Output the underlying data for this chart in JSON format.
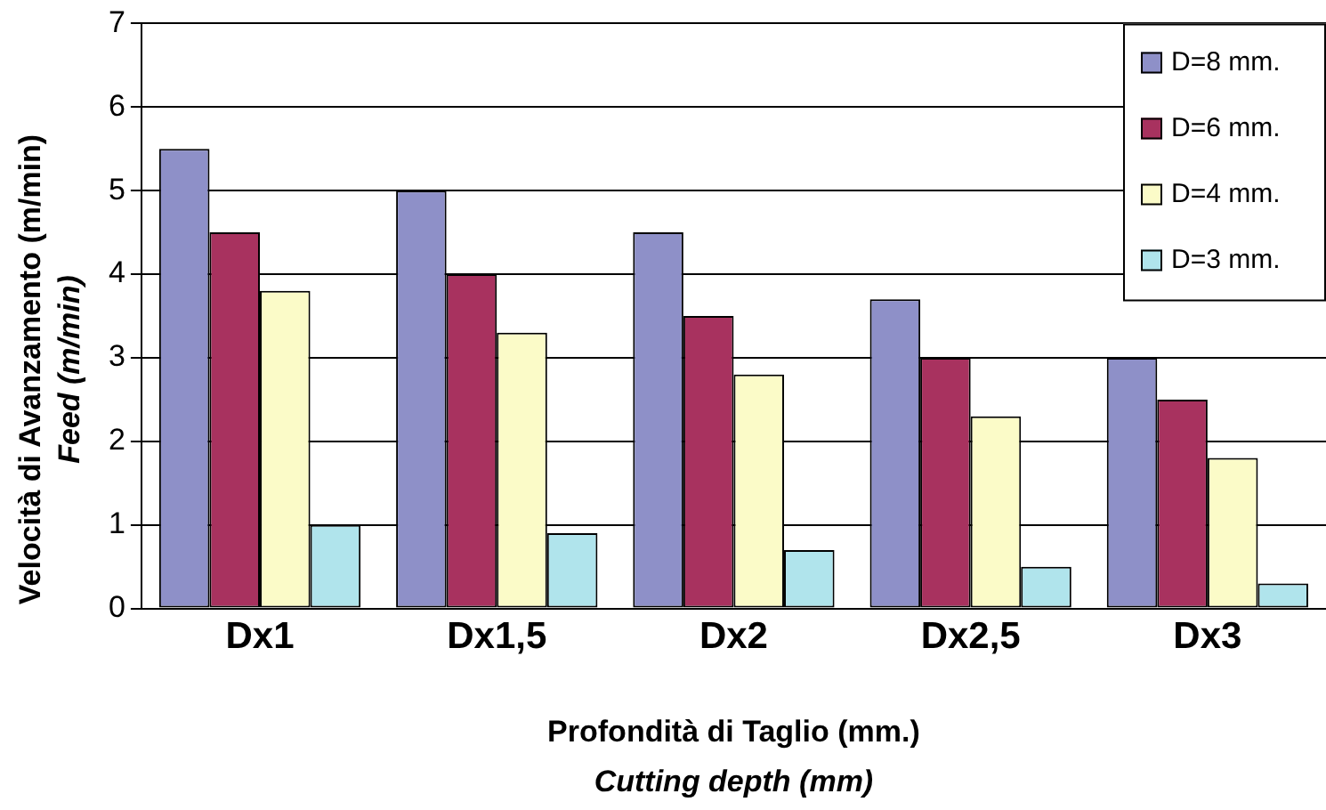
{
  "chart_data": {
    "type": "bar",
    "xlabel": "Profondità di Taglio (mm.)\nCutting depth (mm)",
    "ylabel": "Velocità di Avanzamento (m/min)\nFeed (m/min)",
    "categories": [
      "Dx1",
      "Dx1,5",
      "Dx2",
      "Dx2,5",
      "Dx3"
    ],
    "series": [
      {
        "name": "D=8 mm.",
        "color": "#8e90c8",
        "values": [
          5.5,
          5.0,
          4.5,
          3.7,
          3.0
        ]
      },
      {
        "name": "D=6 mm.",
        "color": "#a8325f",
        "values": [
          4.5,
          4.0,
          3.5,
          3.0,
          2.5
        ]
      },
      {
        "name": "D=4 mm.",
        "color": "#fbfbc8",
        "values": [
          3.8,
          3.3,
          2.8,
          2.3,
          1.8
        ]
      },
      {
        "name": "D=3 mm.",
        "color": "#b0e4ec",
        "values": [
          1.0,
          0.9,
          0.7,
          0.5,
          0.3
        ]
      }
    ],
    "ylim": [
      0,
      7
    ],
    "yticks": [
      0,
      1,
      2,
      3,
      4,
      5,
      6,
      7
    ],
    "grid": "y",
    "legend": "top right"
  }
}
